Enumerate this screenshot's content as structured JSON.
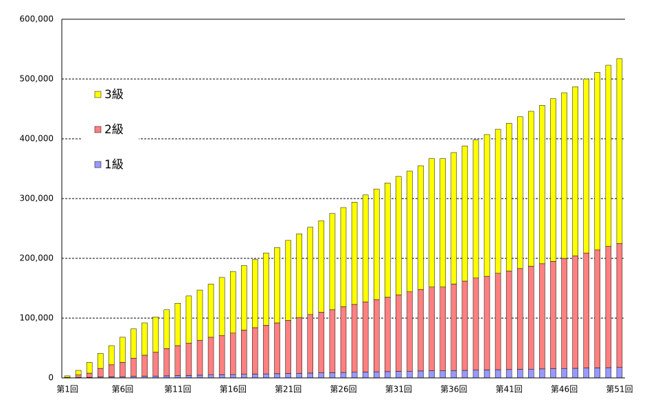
{
  "chart_data": {
    "type": "stacked_bar",
    "categories": [
      "第1回",
      null,
      null,
      null,
      null,
      "第6回",
      null,
      null,
      null,
      null,
      "第11回",
      null,
      null,
      null,
      null,
      "第16回",
      null,
      null,
      null,
      null,
      "第21回",
      null,
      null,
      null,
      null,
      "第26回",
      null,
      null,
      null,
      null,
      "第31回",
      null,
      null,
      null,
      null,
      "第36回",
      null,
      null,
      null,
      null,
      "第41回",
      null,
      null,
      null,
      null,
      "第46回",
      null,
      null,
      null,
      null,
      "第51回"
    ],
    "series": [
      {
        "name": "1級",
        "color": "#9999ff",
        "values": [
          300,
          700,
          1000,
          1400,
          1800,
          2100,
          2500,
          2800,
          3200,
          3500,
          3900,
          4200,
          4600,
          4900,
          5300,
          5600,
          6000,
          6300,
          6700,
          7000,
          7400,
          7700,
          8100,
          8400,
          8800,
          9100,
          9500,
          9800,
          10200,
          10500,
          10900,
          11200,
          11600,
          11900,
          11900,
          12300,
          12600,
          13000,
          13300,
          13700,
          14000,
          14400,
          14700,
          15100,
          15400,
          15800,
          16100,
          16500,
          16800,
          17200,
          17500
        ]
      },
      {
        "name": "2級",
        "color": "#ff8080",
        "values": [
          700,
          4300,
          7000,
          14600,
          20200,
          23900,
          30500,
          35200,
          39800,
          45500,
          50100,
          53800,
          58400,
          63100,
          65700,
          69400,
          74000,
          77700,
          81300,
          85000,
          88600,
          93300,
          97900,
          101600,
          105200,
          109900,
          113500,
          117200,
          120800,
          124500,
          128100,
          132800,
          136400,
          140100,
          140100,
          144700,
          149400,
          154000,
          156700,
          161300,
          165000,
          168600,
          172300,
          175900,
          179600,
          184200,
          187900,
          192500,
          197200,
          202800,
          207500
        ]
      },
      {
        "name": "3級",
        "color": "#ffff00",
        "values": [
          2500,
          7600,
          18000,
          25000,
          32000,
          42000,
          49000,
          54000,
          59000,
          65000,
          71000,
          79000,
          84000,
          89000,
          97000,
          103000,
          108000,
          114000,
          121000,
          126000,
          134000,
          140000,
          146000,
          153000,
          161000,
          166000,
          171000,
          179000,
          185000,
          191000,
          198000,
          202000,
          207000,
          215000,
          215000,
          220000,
          226000,
          231000,
          237000,
          241000,
          247000,
          254000,
          259000,
          265000,
          272000,
          277000,
          283000,
          291000,
          297000,
          303000,
          309000
        ]
      }
    ],
    "ylim": [
      0,
      600000
    ],
    "yticks": [
      0,
      {
        "value": 100000,
        "label": "100,000"
      },
      {
        "value": 200000,
        "label": "200,000"
      },
      {
        "value": 300000,
        "label": "300,000"
      },
      {
        "value": 400000,
        "label": "400,000"
      },
      {
        "value": 500000,
        "label": "500,000"
      },
      {
        "value": 600000,
        "label": "600,000"
      }
    ],
    "grid": true,
    "legend": "upper left"
  }
}
